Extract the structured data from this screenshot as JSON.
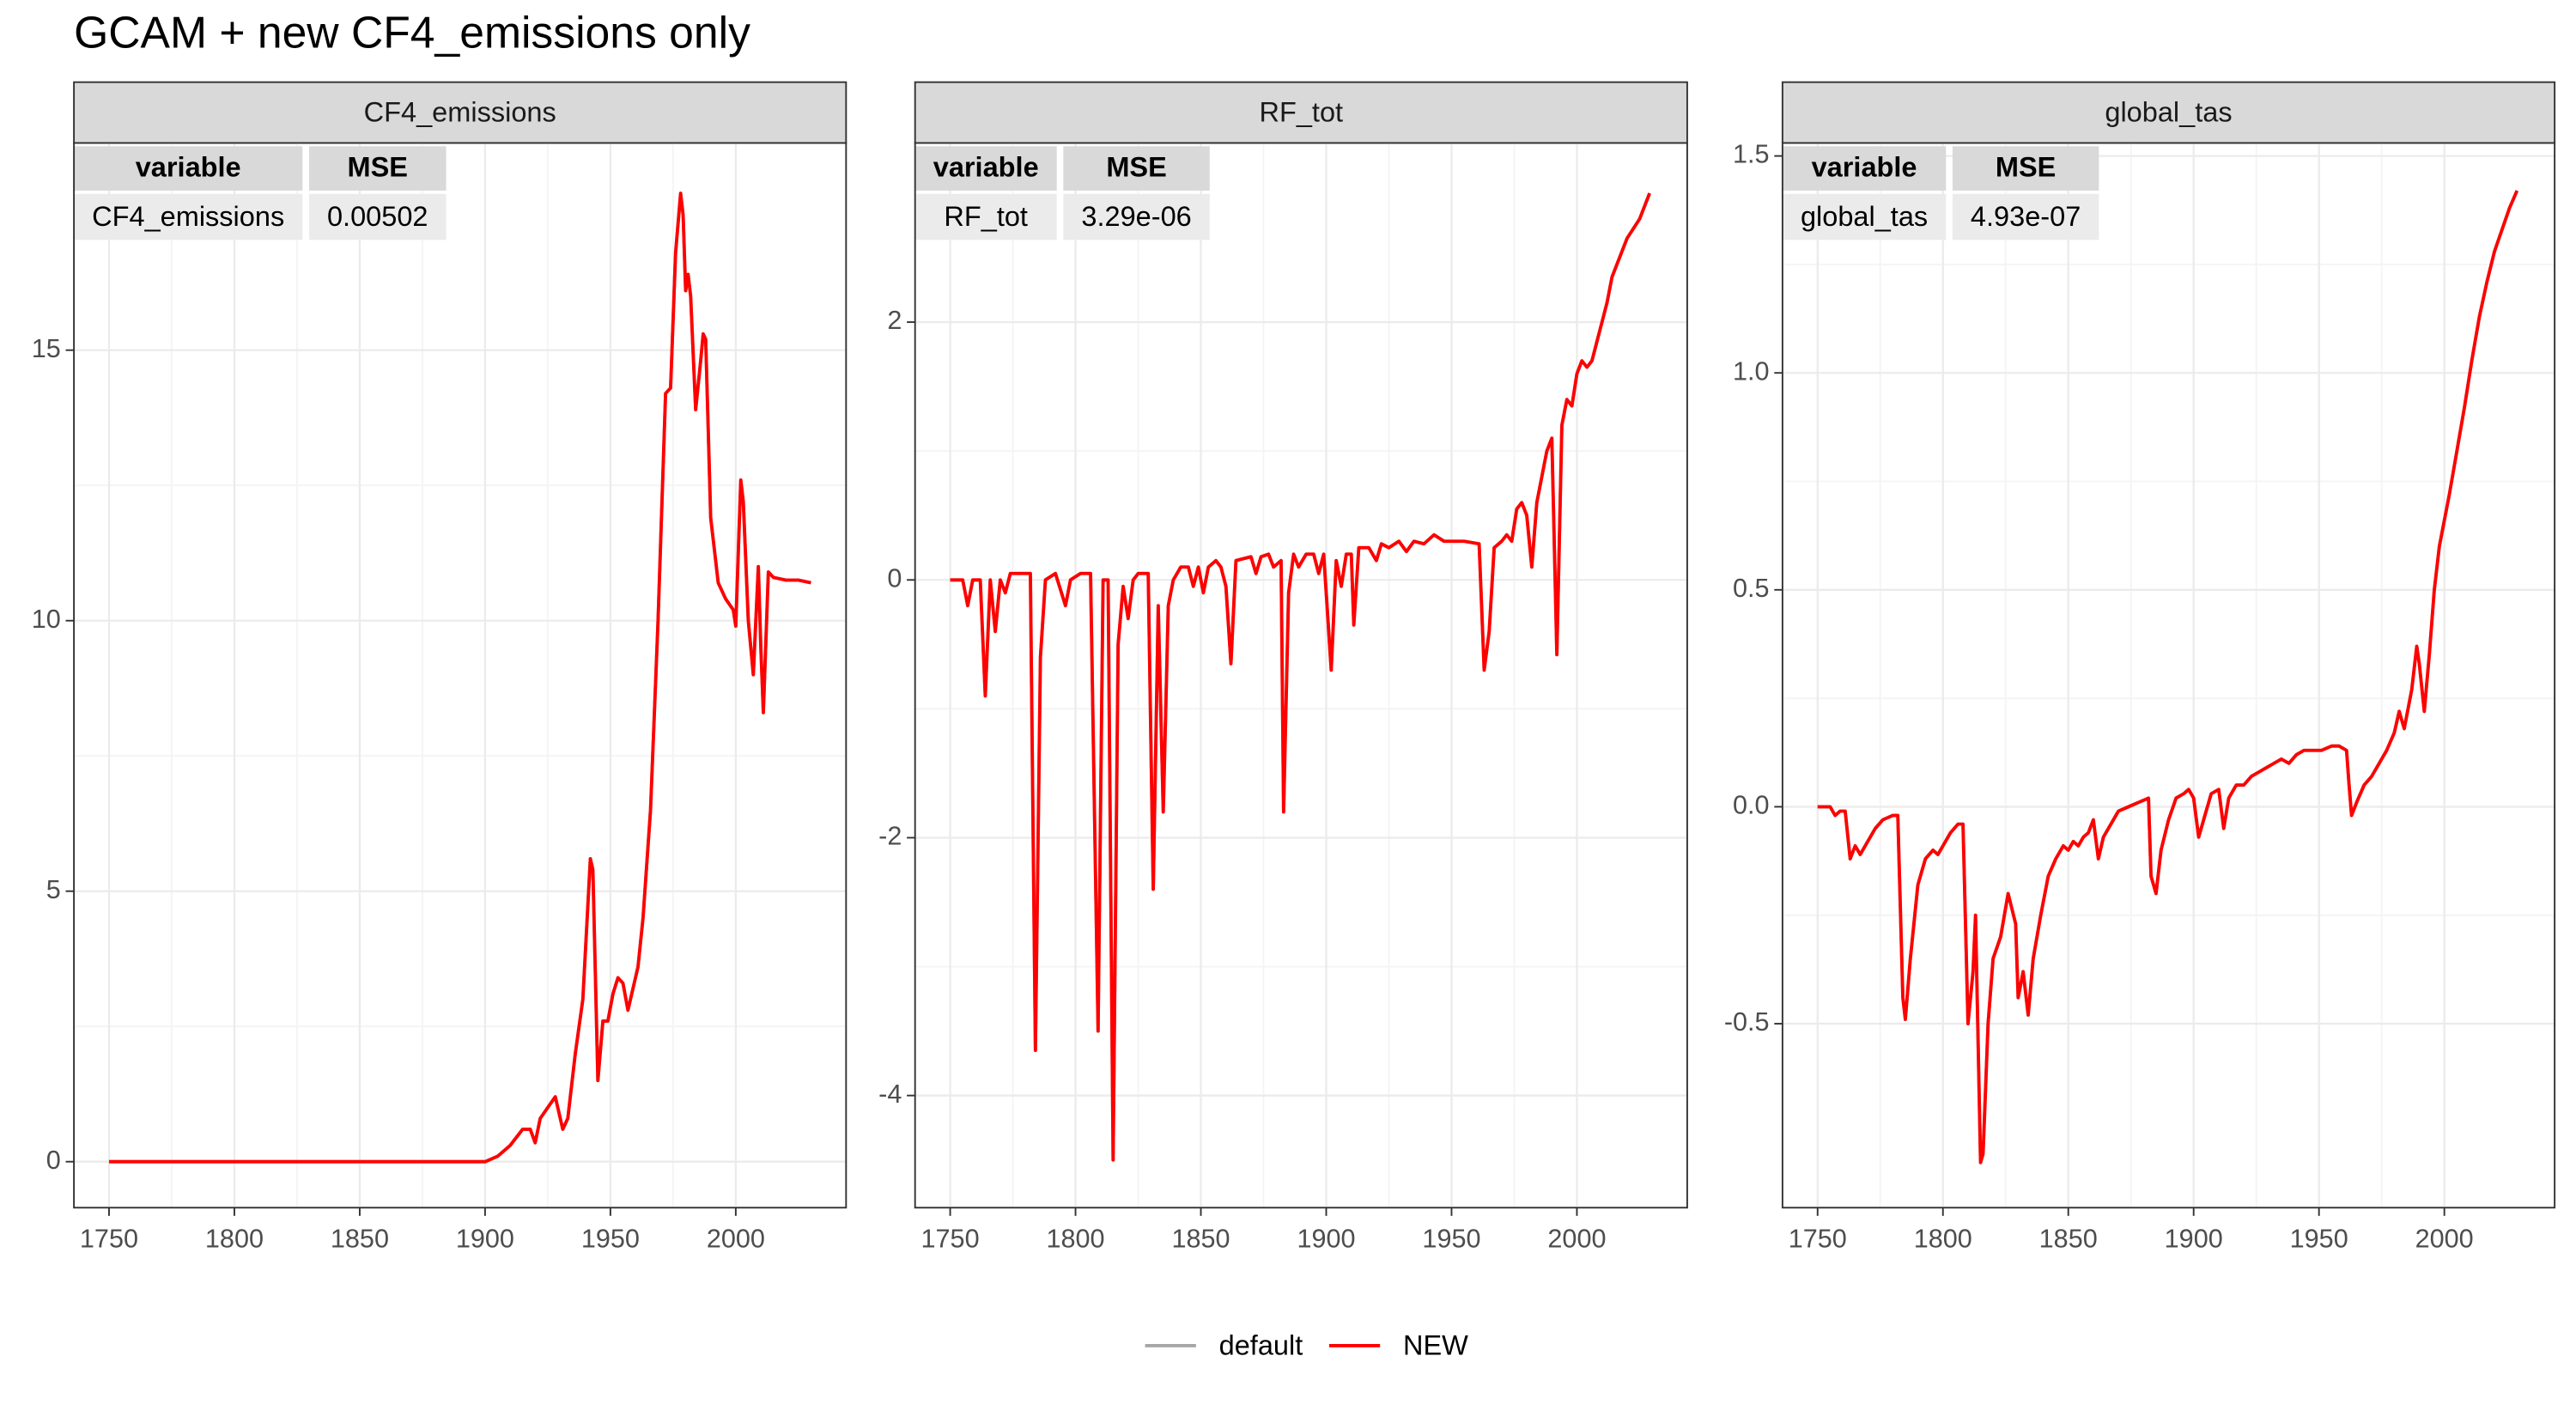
{
  "title": "GCAM + new CF4_emissions only",
  "chart_data": [
    {
      "type": "line",
      "title": "CF4_emissions",
      "table": {
        "columns": [
          "variable",
          "MSE"
        ],
        "rows": [
          [
            "CF4_emissions",
            "0.00502"
          ]
        ]
      },
      "xlim": [
        1736,
        2044
      ],
      "xticks": [
        1750,
        1800,
        1850,
        1900,
        1950,
        2000
      ],
      "ylim": [
        -0.85,
        18.83
      ],
      "yticks": [
        0,
        5,
        10,
        15
      ],
      "grid": true,
      "x": [
        1750,
        1900,
        1905,
        1910,
        1915,
        1918,
        1920,
        1922,
        1925,
        1928,
        1931,
        1933,
        1936,
        1939,
        1942,
        1943,
        1945,
        1947,
        1949,
        1951,
        1953,
        1955,
        1957,
        1959,
        1961,
        1963,
        1966,
        1969,
        1972,
        1974,
        1976,
        1978,
        1979,
        1980,
        1981,
        1982,
        1984,
        1986,
        1987,
        1988,
        1990,
        1993,
        1996,
        1999,
        2000,
        2002,
        2003,
        2005,
        2007,
        2009,
        2010,
        2011,
        2013,
        2015,
        2020,
        2025,
        2030
      ],
      "series": [
        {
          "name": "default",
          "color": "#a6a6a6",
          "values": [
            0,
            0,
            0.1,
            0.3,
            0.6,
            0.6,
            0.35,
            0.8,
            1.0,
            1.2,
            0.6,
            0.8,
            2.0,
            3.0,
            5.6,
            5.4,
            1.5,
            2.6,
            2.6,
            3.1,
            3.4,
            3.3,
            2.8,
            3.2,
            3.6,
            4.5,
            6.5,
            10,
            14.2,
            14.3,
            16.8,
            17.9,
            17.5,
            16.1,
            16.4,
            16.0,
            13.9,
            14.8,
            15.3,
            15.2,
            11.9,
            10.7,
            10.4,
            10.2,
            9.9,
            12.6,
            12.2,
            10,
            9.0,
            11.0,
            9.5,
            8.3,
            10.9,
            10.8,
            10.75,
            10.75,
            10.7
          ]
        },
        {
          "name": "NEW",
          "color": "#ff0000",
          "values": [
            0,
            0,
            0.1,
            0.3,
            0.6,
            0.6,
            0.35,
            0.8,
            1.0,
            1.2,
            0.6,
            0.8,
            2.0,
            3.0,
            5.6,
            5.4,
            1.5,
            2.6,
            2.6,
            3.1,
            3.4,
            3.3,
            2.8,
            3.2,
            3.6,
            4.5,
            6.5,
            10,
            14.2,
            14.3,
            16.8,
            17.9,
            17.5,
            16.1,
            16.4,
            16.0,
            13.9,
            14.8,
            15.3,
            15.2,
            11.9,
            10.7,
            10.4,
            10.2,
            9.9,
            12.6,
            12.2,
            10,
            9.0,
            11.0,
            9.5,
            8.3,
            10.9,
            10.8,
            10.75,
            10.75,
            10.7
          ]
        }
      ]
    },
    {
      "type": "line",
      "title": "RF_tot",
      "table": {
        "columns": [
          "variable",
          "MSE"
        ],
        "rows": [
          [
            "RF_tot",
            "3.29e-06"
          ]
        ]
      },
      "xlim": [
        1736,
        2044
      ],
      "xticks": [
        1750,
        1800,
        1850,
        1900,
        1950,
        2000
      ],
      "ylim": [
        -4.87,
        3.39
      ],
      "yticks": [
        -4,
        -2,
        0,
        2
      ],
      "grid": true,
      "x": [
        1750,
        1755,
        1757,
        1759,
        1762,
        1764,
        1766,
        1768,
        1770,
        1772,
        1774,
        1782,
        1784,
        1786,
        1788,
        1792,
        1796,
        1798,
        1802,
        1806,
        1809,
        1811,
        1813,
        1815,
        1817,
        1819,
        1821,
        1823,
        1825,
        1829,
        1831,
        1833,
        1835,
        1837,
        1839,
        1842,
        1845,
        1847,
        1849,
        1851,
        1853,
        1856,
        1858,
        1860,
        1862,
        1864,
        1870,
        1872,
        1874,
        1877,
        1879,
        1882,
        1883,
        1885,
        1887,
        1889,
        1892,
        1895,
        1897,
        1899,
        1902,
        1904,
        1906,
        1908,
        1910,
        1911,
        1913,
        1917,
        1920,
        1922,
        1925,
        1929,
        1932,
        1935,
        1939,
        1943,
        1947,
        1951,
        1955,
        1961,
        1963,
        1965,
        1967,
        1970,
        1972,
        1974,
        1976,
        1978,
        1980,
        1982,
        1984,
        1986,
        1988,
        1990,
        1992,
        1994,
        1996,
        1998,
        2000,
        2002,
        2004,
        2006,
        2008,
        2010,
        2012,
        2014,
        2016,
        2018,
        2020,
        2025,
        2029
      ],
      "series": [
        {
          "name": "default",
          "color": "#a6a6a6",
          "values": [
            0,
            0,
            -0.2,
            0,
            0,
            -0.9,
            0,
            -0.4,
            0,
            -0.1,
            0.05,
            0.05,
            -3.65,
            -0.6,
            0,
            0.05,
            -0.2,
            0,
            0.05,
            0.05,
            -3.5,
            0,
            0,
            -4.5,
            -0.5,
            -0.05,
            -0.3,
            0,
            0.05,
            0.05,
            -2.4,
            -0.2,
            -1.8,
            -0.2,
            0,
            0.1,
            0.1,
            -0.05,
            0.1,
            -0.1,
            0.1,
            0.15,
            0.1,
            -0.05,
            -0.65,
            0.15,
            0.18,
            0.05,
            0.18,
            0.2,
            0.1,
            0.15,
            -1.8,
            -0.1,
            0.2,
            0.1,
            0.2,
            0.2,
            0.05,
            0.2,
            -0.7,
            0.15,
            -0.05,
            0.2,
            0.2,
            -0.35,
            0.25,
            0.25,
            0.15,
            0.28,
            0.25,
            0.3,
            0.22,
            0.3,
            0.28,
            0.35,
            0.3,
            0.3,
            0.3,
            0.28,
            -0.7,
            -0.4,
            0.25,
            0.3,
            0.35,
            0.3,
            0.55,
            0.6,
            0.5,
            0.1,
            0.6,
            0.8,
            1.0,
            1.1,
            -0.58,
            1.2,
            1.4,
            1.35,
            1.6,
            1.7,
            1.65,
            1.7,
            1.85,
            2.0,
            2.15,
            2.35,
            2.45,
            2.55,
            2.65,
            2.8,
            3.0
          ]
        },
        {
          "name": "NEW",
          "color": "#ff0000",
          "values": [
            0,
            0,
            -0.2,
            0,
            0,
            -0.9,
            0,
            -0.4,
            0,
            -0.1,
            0.05,
            0.05,
            -3.65,
            -0.6,
            0,
            0.05,
            -0.2,
            0,
            0.05,
            0.05,
            -3.5,
            0,
            0,
            -4.5,
            -0.5,
            -0.05,
            -0.3,
            0,
            0.05,
            0.05,
            -2.4,
            -0.2,
            -1.8,
            -0.2,
            0,
            0.1,
            0.1,
            -0.05,
            0.1,
            -0.1,
            0.1,
            0.15,
            0.1,
            -0.05,
            -0.65,
            0.15,
            0.18,
            0.05,
            0.18,
            0.2,
            0.1,
            0.15,
            -1.8,
            -0.1,
            0.2,
            0.1,
            0.2,
            0.2,
            0.05,
            0.2,
            -0.7,
            0.15,
            -0.05,
            0.2,
            0.2,
            -0.35,
            0.25,
            0.25,
            0.15,
            0.28,
            0.25,
            0.3,
            0.22,
            0.3,
            0.28,
            0.35,
            0.3,
            0.3,
            0.3,
            0.28,
            -0.7,
            -0.4,
            0.25,
            0.3,
            0.35,
            0.3,
            0.55,
            0.6,
            0.5,
            0.1,
            0.6,
            0.8,
            1.0,
            1.1,
            -0.58,
            1.2,
            1.4,
            1.35,
            1.6,
            1.7,
            1.65,
            1.7,
            1.85,
            2.0,
            2.15,
            2.35,
            2.45,
            2.55,
            2.65,
            2.8,
            3.0
          ]
        }
      ]
    },
    {
      "type": "line",
      "title": "global_tas",
      "table": {
        "columns": [
          "variable",
          "MSE"
        ],
        "rows": [
          [
            "global_tas",
            "4.93e-07"
          ]
        ]
      },
      "xlim": [
        1736,
        2044
      ],
      "xticks": [
        1750,
        1800,
        1850,
        1900,
        1950,
        2000
      ],
      "ylim": [
        -0.924,
        1.53
      ],
      "yticks": [
        -0.5,
        {
          "value": 0,
          "label": "0.0"
        },
        0.5,
        {
          "value": 1,
          "label": "1.0"
        },
        1.5
      ],
      "grid": true,
      "x": [
        1750,
        1755,
        1757,
        1759,
        1761,
        1763,
        1765,
        1767,
        1770,
        1773,
        1776,
        1780,
        1782,
        1784,
        1785,
        1787,
        1790,
        1793,
        1796,
        1798,
        1800,
        1803,
        1806,
        1808,
        1810,
        1812,
        1813,
        1815,
        1816,
        1818,
        1820,
        1823,
        1826,
        1829,
        1830,
        1832,
        1834,
        1836,
        1839,
        1842,
        1845,
        1848,
        1850,
        1852,
        1854,
        1856,
        1858,
        1860,
        1862,
        1864,
        1867,
        1870,
        1874,
        1878,
        1882,
        1883,
        1885,
        1887,
        1890,
        1893,
        1896,
        1898,
        1900,
        1902,
        1904,
        1907,
        1910,
        1912,
        1914,
        1917,
        1920,
        1923,
        1926,
        1929,
        1932,
        1935,
        1938,
        1941,
        1944,
        1948,
        1951,
        1955,
        1958,
        1961,
        1962,
        1963,
        1965,
        1968,
        1971,
        1974,
        1977,
        1980,
        1982,
        1984,
        1987,
        1989,
        1990,
        1992,
        1994,
        1996,
        1998,
        2000,
        2002,
        2005,
        2008,
        2011,
        2014,
        2017,
        2020,
        2023,
        2026,
        2029
      ],
      "series": [
        {
          "name": "default",
          "color": "#a6a6a6",
          "values": [
            0,
            0,
            -0.02,
            -0.01,
            -0.01,
            -0.12,
            -0.09,
            -0.11,
            -0.08,
            -0.05,
            -0.03,
            -0.02,
            -0.02,
            -0.44,
            -0.49,
            -0.35,
            -0.18,
            -0.12,
            -0.1,
            -0.11,
            -0.09,
            -0.06,
            -0.04,
            -0.04,
            -0.5,
            -0.38,
            -0.25,
            -0.82,
            -0.8,
            -0.5,
            -0.35,
            -0.3,
            -0.2,
            -0.27,
            -0.44,
            -0.38,
            -0.48,
            -0.35,
            -0.25,
            -0.16,
            -0.12,
            -0.09,
            -0.1,
            -0.08,
            -0.09,
            -0.07,
            -0.06,
            -0.03,
            -0.12,
            -0.07,
            -0.04,
            -0.01,
            0,
            0.01,
            0.02,
            -0.16,
            -0.2,
            -0.1,
            -0.03,
            0.02,
            0.03,
            0.04,
            0.02,
            -0.07,
            -0.03,
            0.03,
            0.04,
            -0.05,
            0.02,
            0.05,
            0.05,
            0.07,
            0.08,
            0.09,
            0.1,
            0.11,
            0.1,
            0.12,
            0.13,
            0.13,
            0.13,
            0.14,
            0.14,
            0.13,
            0.05,
            -0.02,
            0.01,
            0.05,
            0.07,
            0.1,
            0.13,
            0.17,
            0.22,
            0.18,
            0.27,
            0.37,
            0.33,
            0.22,
            0.35,
            0.5,
            0.6,
            0.66,
            0.72,
            0.82,
            0.92,
            1.03,
            1.13,
            1.21,
            1.28,
            1.33,
            1.38,
            1.42
          ]
        },
        {
          "name": "NEW",
          "color": "#ff0000",
          "values": [
            0,
            0,
            -0.02,
            -0.01,
            -0.01,
            -0.12,
            -0.09,
            -0.11,
            -0.08,
            -0.05,
            -0.03,
            -0.02,
            -0.02,
            -0.44,
            -0.49,
            -0.35,
            -0.18,
            -0.12,
            -0.1,
            -0.11,
            -0.09,
            -0.06,
            -0.04,
            -0.04,
            -0.5,
            -0.38,
            -0.25,
            -0.82,
            -0.8,
            -0.5,
            -0.35,
            -0.3,
            -0.2,
            -0.27,
            -0.44,
            -0.38,
            -0.48,
            -0.35,
            -0.25,
            -0.16,
            -0.12,
            -0.09,
            -0.1,
            -0.08,
            -0.09,
            -0.07,
            -0.06,
            -0.03,
            -0.12,
            -0.07,
            -0.04,
            -0.01,
            0,
            0.01,
            0.02,
            -0.16,
            -0.2,
            -0.1,
            -0.03,
            0.02,
            0.03,
            0.04,
            0.02,
            -0.07,
            -0.03,
            0.03,
            0.04,
            -0.05,
            0.02,
            0.05,
            0.05,
            0.07,
            0.08,
            0.09,
            0.1,
            0.11,
            0.1,
            0.12,
            0.13,
            0.13,
            0.13,
            0.14,
            0.14,
            0.13,
            0.05,
            -0.02,
            0.01,
            0.05,
            0.07,
            0.1,
            0.13,
            0.17,
            0.22,
            0.18,
            0.27,
            0.37,
            0.33,
            0.22,
            0.35,
            0.5,
            0.6,
            0.66,
            0.72,
            0.82,
            0.92,
            1.03,
            1.13,
            1.21,
            1.28,
            1.33,
            1.38,
            1.42
          ]
        }
      ]
    }
  ]
}
